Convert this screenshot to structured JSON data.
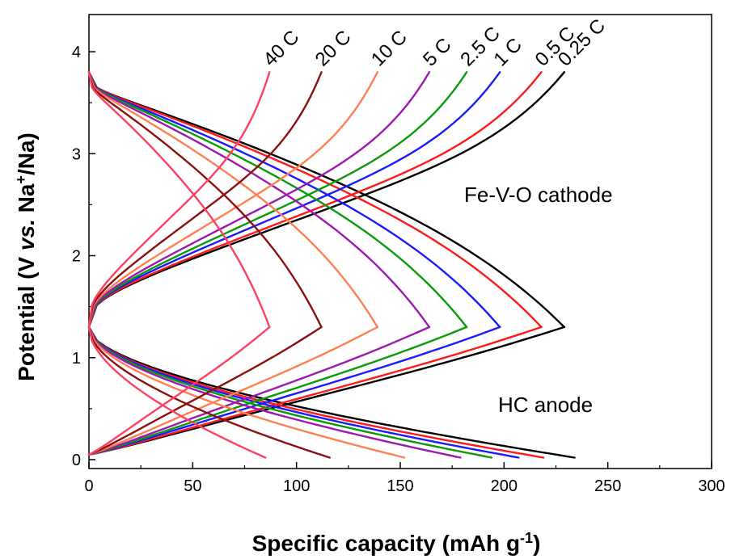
{
  "chart_data": {
    "type": "line",
    "xlabel": "Specific capacity (mAh g",
    "xlabel_sup": "-1",
    "xlabel_end": ")",
    "ylabel_pre": "Potential (V ",
    "ylabel_vs": "vs.",
    "ylabel_na": " Na",
    "ylabel_sup": "+",
    "ylabel_post": "/Na)",
    "xlim": [
      0,
      300
    ],
    "ylim": [
      -0.05,
      4.4
    ],
    "xticks": [
      "0",
      "50",
      "100",
      "150",
      "200",
      "250",
      "300"
    ],
    "yticks": [
      "0",
      "1",
      "2",
      "3",
      "4"
    ],
    "grid": false,
    "annotations": [
      "Fe-V-O cathode",
      "HC anode"
    ],
    "series": [
      {
        "name": "0.25 C",
        "color": "#000000",
        "cathode_capacity": 229,
        "anode_capacity": 234
      },
      {
        "name": "0.5 C",
        "color": "#ff1a1a",
        "cathode_capacity": 218,
        "anode_capacity": 219
      },
      {
        "name": "1 C",
        "color": "#1a1aff",
        "cathode_capacity": 198,
        "anode_capacity": 207
      },
      {
        "name": "2.5 C",
        "color": "#0a9a0a",
        "cathode_capacity": 182,
        "anode_capacity": 194
      },
      {
        "name": "5 C",
        "color": "#9a1ab0",
        "cathode_capacity": 164,
        "anode_capacity": 179
      },
      {
        "name": "10 C",
        "color": "#ff7f50",
        "cathode_capacity": 139,
        "anode_capacity": 152
      },
      {
        "name": "20 C",
        "color": "#8b1010",
        "cathode_capacity": 112,
        "anode_capacity": 116
      },
      {
        "name": "40 C",
        "color": "#ff4060",
        "cathode_capacity": 87,
        "anode_capacity": 85
      }
    ]
  }
}
